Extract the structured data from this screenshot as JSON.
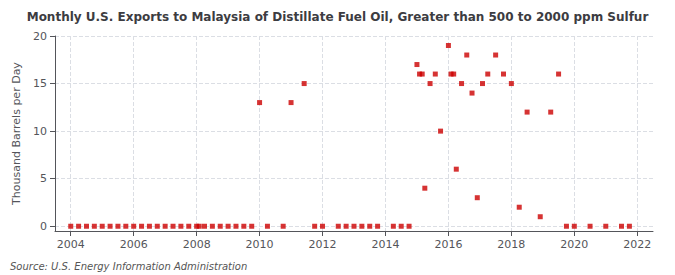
{
  "chart_data": {
    "type": "scatter",
    "title": "Monthly U.S. Exports to Malaysia of Distillate Fuel Oil, Greater than 500 to 2000 ppm Sulfur",
    "ylabel": "Thousand Barrels per Day",
    "annotation": "Source: U.S. Energy Information Administration",
    "color": "#cc0000",
    "marker": "square",
    "grid": true,
    "xlim": [
      2003.5,
      2022.5
    ],
    "ylim": [
      -0.5,
      20
    ],
    "xticks": [
      2004,
      2006,
      2008,
      2010,
      2012,
      2014,
      2016,
      2018,
      2020,
      2022
    ],
    "yticks": [
      0,
      5,
      10,
      15,
      20
    ],
    "x": [
      2004.0,
      2004.25,
      2004.5,
      2004.75,
      2005.0,
      2005.25,
      2005.5,
      2005.75,
      2006.0,
      2006.25,
      2006.5,
      2006.75,
      2007.0,
      2007.25,
      2007.5,
      2007.75,
      2008.0,
      2008.083,
      2008.25,
      2008.5,
      2008.75,
      2009.0,
      2009.25,
      2009.5,
      2009.75,
      2010.0,
      2010.25,
      2010.75,
      2011.0,
      2011.417,
      2011.75,
      2012.0,
      2012.5,
      2012.75,
      2013.0,
      2013.25,
      2013.5,
      2013.75,
      2014.25,
      2014.5,
      2014.75,
      2015.0,
      2015.083,
      2015.167,
      2015.25,
      2015.417,
      2015.583,
      2015.75,
      2016.0,
      2016.083,
      2016.167,
      2016.25,
      2016.417,
      2016.583,
      2016.75,
      2016.917,
      2017.083,
      2017.25,
      2017.5,
      2017.75,
      2018.0,
      2018.25,
      2018.5,
      2018.917,
      2019.25,
      2019.5,
      2019.75,
      2020.0,
      2020.5,
      2021.0,
      2021.5,
      2021.75
    ],
    "values": [
      0,
      0,
      0,
      0,
      0,
      0,
      0,
      0,
      0,
      0,
      0,
      0,
      0,
      0,
      0,
      0,
      0,
      0,
      0,
      0,
      0,
      0,
      0,
      0,
      0,
      13,
      0,
      0,
      13,
      15,
      0,
      0,
      0,
      0,
      0,
      0,
      0,
      0,
      0,
      0,
      0,
      17,
      16,
      16,
      4,
      15,
      16,
      10,
      19,
      16,
      16,
      6,
      15,
      18,
      14,
      3,
      15,
      16,
      18,
      16,
      15,
      2,
      12,
      1,
      12,
      16,
      0,
      0,
      0,
      0,
      0,
      0
    ]
  }
}
